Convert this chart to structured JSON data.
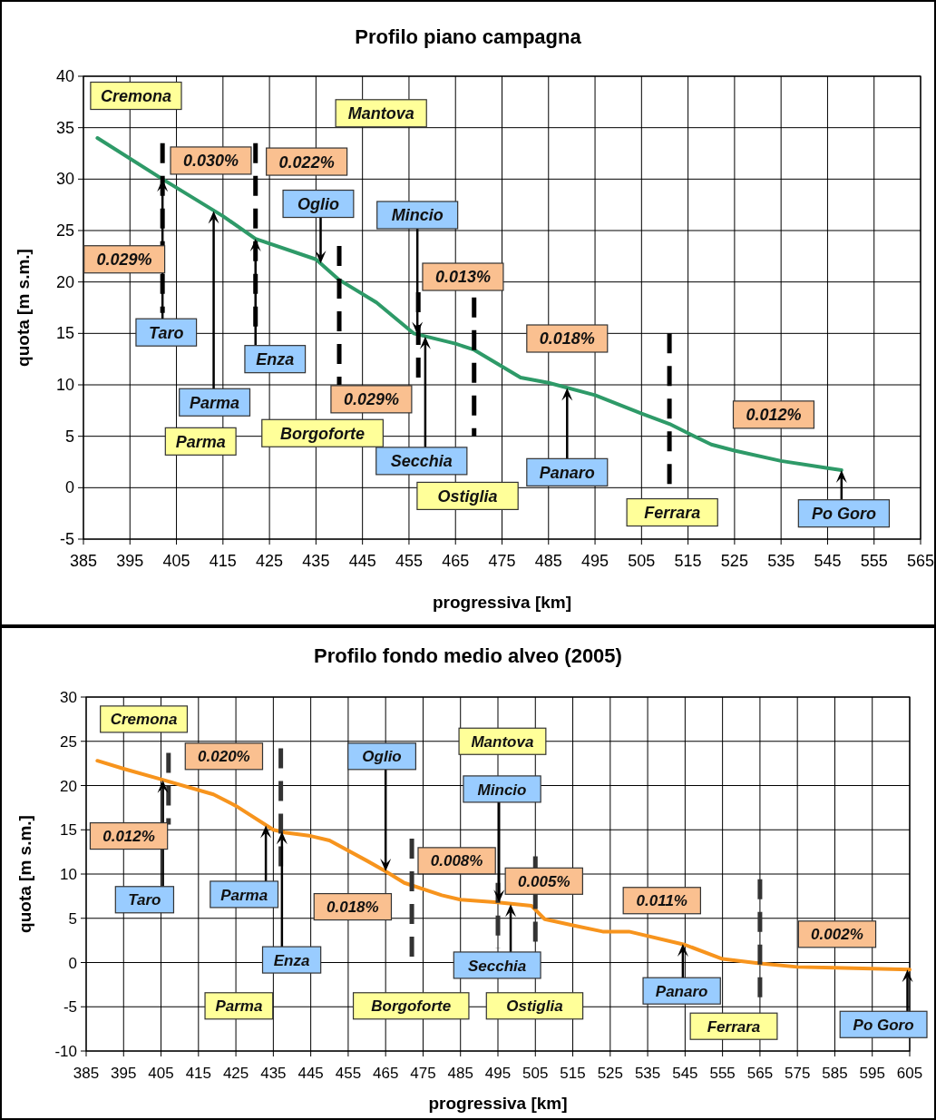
{
  "chart_data": [
    {
      "type": "line",
      "title": "Profilo piano campagna",
      "xlabel": "progressiva [km]",
      "ylabel": "quota [m s.m.]",
      "xlim": [
        385,
        565
      ],
      "xticks": [
        385,
        395,
        405,
        415,
        425,
        435,
        445,
        455,
        465,
        475,
        485,
        495,
        505,
        515,
        525,
        535,
        545,
        555,
        565
      ],
      "ylim": [
        -5,
        40
      ],
      "yticks": [
        -5,
        0,
        5,
        10,
        15,
        20,
        25,
        30,
        35,
        40
      ],
      "grid": true,
      "series": [
        {
          "color": "#2e9a68",
          "x": [
            388,
            402,
            415,
            422,
            435,
            440,
            448,
            456,
            465,
            469,
            479,
            485,
            495,
            505,
            511,
            515,
            520,
            525,
            535,
            545,
            548
          ],
          "values": [
            34,
            30,
            26.4,
            24.2,
            22.2,
            20.2,
            18,
            15,
            14,
            13.4,
            10.7,
            10.2,
            9,
            7.2,
            6.2,
            5.3,
            4.2,
            3.6,
            2.6,
            1.9,
            1.7
          ]
        },
        {
          "color": "#000000",
          "line_style": "dashed",
          "x": [
            402,
            402
          ],
          "values": [
            33.5,
            17
          ]
        },
        {
          "color": "#000000",
          "line_style": "dashed",
          "x": [
            422,
            422
          ],
          "values": [
            33.5,
            15
          ]
        },
        {
          "color": "#000000",
          "line_style": "dashed",
          "x": [
            440,
            440
          ],
          "values": [
            23.5,
            10
          ]
        },
        {
          "color": "#000000",
          "line_style": "dashed",
          "x": [
            457,
            457
          ],
          "values": [
            19,
            10
          ]
        },
        {
          "color": "#000000",
          "line_style": "dashed",
          "x": [
            469,
            469
          ],
          "values": [
            18.5,
            5
          ]
        },
        {
          "color": "#000000",
          "line_style": "dashed",
          "x": [
            511,
            511
          ],
          "values": [
            15,
            0
          ]
        }
      ],
      "annotations": [
        "Cremona",
        "Mantova",
        "0.030%",
        "0.022%",
        {
          "text": "Oglio",
          "x": 436,
          "y": 21.8
        },
        {
          "text": "Mincio",
          "x": 456.8,
          "y": 14.9
        },
        "0.029%",
        "0.013%",
        {
          "text": "Taro",
          "x": 402,
          "y": 30
        },
        {
          "text": "Enza",
          "x": 422,
          "y": 24.2
        },
        {
          "text": "Parma",
          "x": 413,
          "y": 26.9
        },
        "Parma",
        "0.029%",
        "Borgoforte",
        {
          "text": "Secchia",
          "x": 458.5,
          "y": 14.7
        },
        "Ostiglia",
        "0.018%",
        {
          "text": "Panaro",
          "x": 489,
          "y": 9.7
        },
        "0.012%",
        "Ferrara",
        {
          "text": "Po Goro",
          "x": 548,
          "y": 1.7
        }
      ]
    },
    {
      "type": "line",
      "title": "Profilo fondo medio alveo (2005)",
      "xlabel": "progressiva [km]",
      "ylabel": "quota [m s.m.]",
      "xlim": [
        385,
        605
      ],
      "xticks": [
        385,
        395,
        405,
        415,
        425,
        435,
        445,
        455,
        465,
        475,
        485,
        495,
        505,
        515,
        525,
        535,
        545,
        555,
        565,
        575,
        585,
        595,
        605
      ],
      "ylim": [
        -10,
        30
      ],
      "yticks": [
        -10,
        -5,
        0,
        5,
        10,
        15,
        20,
        25,
        30
      ],
      "grid": true,
      "series": [
        {
          "color": "#f7941d",
          "x": [
            388,
            395,
            405,
            419,
            425,
            435,
            438,
            445,
            450,
            460,
            465,
            470,
            480,
            485,
            495,
            504,
            507.5,
            515,
            523,
            530,
            545,
            555,
            565,
            575,
            585,
            605
          ],
          "values": [
            22.8,
            21.9,
            20.7,
            19,
            17.7,
            15,
            14.7,
            14.3,
            13.8,
            11.5,
            10.3,
            9,
            7.6,
            7.1,
            6.8,
            6.4,
            4.9,
            4.2,
            3.5,
            3.5,
            2,
            0.4,
            -0.1,
            -0.5,
            -0.6,
            -0.8
          ]
        },
        {
          "color": "#333333",
          "line_style": "dashed",
          "x": [
            407,
            407
          ],
          "values": [
            23.7,
            15.6
          ]
        },
        {
          "color": "#333333",
          "line_style": "dashed",
          "x": [
            437,
            437
          ],
          "values": [
            24.2,
            10
          ]
        },
        {
          "color": "#333333",
          "line_style": "dashed",
          "x": [
            472,
            472
          ],
          "values": [
            14,
            0
          ]
        },
        {
          "color": "#333333",
          "line_style": "dashed",
          "x": [
            495,
            495
          ],
          "values": [
            9,
            1.6
          ]
        },
        {
          "color": "#333333",
          "line_style": "dashed",
          "x": [
            505,
            505
          ],
          "values": [
            12,
            -2
          ]
        },
        {
          "color": "#333333",
          "line_style": "dashed",
          "x": [
            565,
            565
          ],
          "values": [
            9.4,
            -4.9
          ]
        }
      ],
      "annotations": [
        "Cremona",
        "0.020%",
        {
          "text": "Oglio",
          "x": 465,
          "y": 10.3
        },
        "Mantova",
        {
          "text": "Mincio",
          "x": 495.3,
          "y": 6.8
        },
        "0.012%",
        "0.008%",
        "0.005%",
        {
          "text": "Taro",
          "x": 405.5,
          "y": 20.6
        },
        {
          "text": "Parma",
          "x": 433,
          "y": 15.5
        },
        "0.018%",
        "0.011%",
        "0.002%",
        {
          "text": "Enza",
          "x": 437.3,
          "y": 14.8
        },
        {
          "text": "Secchia",
          "x": 498.4,
          "y": 6.6
        },
        {
          "text": "Panaro",
          "x": 544.4,
          "y": 2.1
        },
        "Parma",
        "Borgoforte",
        "Ostiglia",
        "Ferrara",
        {
          "text": "Po Goro",
          "x": 604.4,
          "y": -0.8
        }
      ]
    }
  ]
}
